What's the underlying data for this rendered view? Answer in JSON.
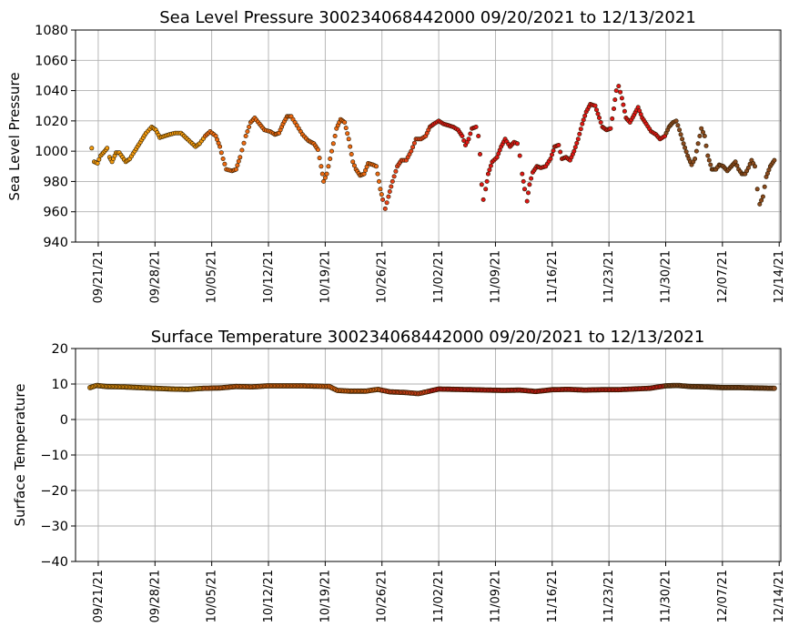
{
  "chart_data": [
    {
      "type": "scatter",
      "title": "Sea Level Pressure 300234068442000  09/20/2021 to 12/13/2021",
      "xlabel": "",
      "ylabel": "Sea Level Pressure",
      "x_range_days": [
        -1.8,
        85.2
      ],
      "ylim": [
        940,
        1080
      ],
      "yticks": [
        940,
        960,
        980,
        1000,
        1020,
        1040,
        1060,
        1080
      ],
      "xtick_days": [
        1,
        8,
        15,
        22,
        29,
        36,
        43,
        50,
        57,
        64,
        71,
        78,
        85
      ],
      "xtick_labels": [
        "09/21/21",
        "09/28/21",
        "10/05/21",
        "10/12/21",
        "10/19/21",
        "10/26/21",
        "11/02/21",
        "11/09/21",
        "11/16/21",
        "11/23/21",
        "11/30/21",
        "12/07/21",
        "12/14/21"
      ],
      "grid": true,
      "x_unit": "days since 09/20/2021",
      "key_points": [
        [
          0.2,
          1002
        ],
        [
          0.5,
          993
        ],
        [
          0.9,
          992
        ],
        [
          1.3,
          997
        ],
        [
          1.8,
          1000
        ],
        [
          2.1,
          1002
        ],
        [
          2.4,
          996
        ],
        [
          2.7,
          993
        ],
        [
          3.2,
          999
        ],
        [
          3.6,
          999
        ],
        [
          4.0,
          996
        ],
        [
          4.4,
          993
        ],
        [
          4.9,
          995
        ],
        [
          5.5,
          1000
        ],
        [
          6.2,
          1006
        ],
        [
          6.9,
          1012
        ],
        [
          7.6,
          1016
        ],
        [
          8.1,
          1014
        ],
        [
          8.6,
          1009
        ],
        [
          9.2,
          1010
        ],
        [
          9.8,
          1011
        ],
        [
          10.5,
          1012
        ],
        [
          11.2,
          1012
        ],
        [
          11.8,
          1009
        ],
        [
          12.4,
          1006
        ],
        [
          13.0,
          1003
        ],
        [
          13.5,
          1005
        ],
        [
          14.2,
          1010
        ],
        [
          14.8,
          1013
        ],
        [
          15.5,
          1010
        ],
        [
          16.0,
          1003
        ],
        [
          16.4,
          995
        ],
        [
          16.8,
          988
        ],
        [
          17.5,
          987
        ],
        [
          18.0,
          988
        ],
        [
          18.5,
          996
        ],
        [
          19.2,
          1010
        ],
        [
          19.8,
          1019
        ],
        [
          20.3,
          1022
        ],
        [
          20.9,
          1018
        ],
        [
          21.5,
          1014
        ],
        [
          22.2,
          1013
        ],
        [
          22.8,
          1011
        ],
        [
          23.3,
          1012
        ],
        [
          23.8,
          1018
        ],
        [
          24.3,
          1023
        ],
        [
          24.8,
          1023
        ],
        [
          25.5,
          1017
        ],
        [
          26.2,
          1011
        ],
        [
          26.9,
          1007
        ],
        [
          27.6,
          1005
        ],
        [
          28.1,
          1001
        ],
        [
          28.5,
          990
        ],
        [
          28.8,
          980
        ],
        [
          29.2,
          985
        ],
        [
          29.8,
          1000
        ],
        [
          30.4,
          1015
        ],
        [
          30.9,
          1021
        ],
        [
          31.4,
          1019
        ],
        [
          31.9,
          1008
        ],
        [
          32.4,
          993
        ],
        [
          32.8,
          988
        ],
        [
          33.3,
          984
        ],
        [
          33.8,
          985
        ],
        [
          34.3,
          992
        ],
        [
          34.9,
          991
        ],
        [
          35.3,
          990
        ],
        [
          35.8,
          975
        ],
        [
          36.1,
          968
        ],
        [
          36.4,
          962
        ],
        [
          36.8,
          970
        ],
        [
          37.3,
          980
        ],
        [
          37.9,
          990
        ],
        [
          38.4,
          994
        ],
        [
          39.0,
          994
        ],
        [
          39.6,
          1000
        ],
        [
          40.2,
          1008
        ],
        [
          40.8,
          1008
        ],
        [
          41.4,
          1010
        ],
        [
          41.9,
          1016
        ],
        [
          42.4,
          1018
        ],
        [
          43.0,
          1020
        ],
        [
          43.6,
          1018
        ],
        [
          44.2,
          1017
        ],
        [
          44.8,
          1016
        ],
        [
          45.4,
          1014
        ],
        [
          45.9,
          1010
        ],
        [
          46.3,
          1004
        ],
        [
          46.7,
          1008
        ],
        [
          47.1,
          1015
        ],
        [
          47.6,
          1016
        ],
        [
          47.9,
          1010
        ],
        [
          48.1,
          998
        ],
        [
          48.3,
          978
        ],
        [
          48.5,
          968
        ],
        [
          48.8,
          975
        ],
        [
          49.1,
          985
        ],
        [
          49.6,
          993
        ],
        [
          50.2,
          996
        ],
        [
          50.7,
          1003
        ],
        [
          51.2,
          1008
        ],
        [
          51.8,
          1003
        ],
        [
          52.3,
          1006
        ],
        [
          52.7,
          1005
        ],
        [
          53.0,
          997
        ],
        [
          53.3,
          985
        ],
        [
          53.6,
          975
        ],
        [
          53.9,
          967
        ],
        [
          54.2,
          978
        ],
        [
          54.6,
          986
        ],
        [
          55.1,
          990
        ],
        [
          55.6,
          989
        ],
        [
          56.2,
          990
        ],
        [
          56.8,
          995
        ],
        [
          57.3,
          1003
        ],
        [
          57.8,
          1004
        ],
        [
          58.2,
          995
        ],
        [
          58.7,
          996
        ],
        [
          59.2,
          994
        ],
        [
          59.7,
          1000
        ],
        [
          60.2,
          1008
        ],
        [
          60.7,
          1018
        ],
        [
          61.2,
          1026
        ],
        [
          61.7,
          1031
        ],
        [
          62.3,
          1030
        ],
        [
          62.8,
          1022
        ],
        [
          63.2,
          1016
        ],
        [
          63.7,
          1014
        ],
        [
          64.2,
          1015
        ],
        [
          64.6,
          1028
        ],
        [
          64.9,
          1040
        ],
        [
          65.2,
          1043
        ],
        [
          65.6,
          1035
        ],
        [
          66.1,
          1022
        ],
        [
          66.6,
          1019
        ],
        [
          67.1,
          1024
        ],
        [
          67.6,
          1029
        ],
        [
          68.1,
          1022
        ],
        [
          68.6,
          1018
        ],
        [
          69.2,
          1013
        ],
        [
          69.8,
          1011
        ],
        [
          70.3,
          1008
        ],
        [
          70.9,
          1010
        ],
        [
          71.4,
          1016
        ],
        [
          71.9,
          1019
        ],
        [
          72.3,
          1020
        ],
        [
          72.7,
          1014
        ],
        [
          73.2,
          1005
        ],
        [
          73.7,
          997
        ],
        [
          74.2,
          991
        ],
        [
          74.6,
          995
        ],
        [
          75.0,
          1005
        ],
        [
          75.4,
          1015
        ],
        [
          75.8,
          1010
        ],
        [
          76.2,
          997
        ],
        [
          76.7,
          988
        ],
        [
          77.2,
          988
        ],
        [
          77.6,
          991
        ],
        [
          78.1,
          990
        ],
        [
          78.6,
          987
        ],
        [
          79.1,
          990
        ],
        [
          79.6,
          993
        ],
        [
          80.0,
          988
        ],
        [
          80.4,
          985
        ],
        [
          80.8,
          985
        ],
        [
          81.2,
          989
        ],
        [
          81.6,
          994
        ],
        [
          82.0,
          990
        ],
        [
          82.3,
          975
        ],
        [
          82.6,
          965
        ],
        [
          83.0,
          970
        ],
        [
          83.4,
          983
        ],
        [
          83.9,
          990
        ],
        [
          84.4,
          994
        ]
      ]
    },
    {
      "type": "scatter",
      "title": "Surface Temperature 300234068442000  09/20/2021 to 12/13/2021",
      "xlabel": "",
      "ylabel": "Surface Temperature",
      "x_range_days": [
        -1.8,
        85.2
      ],
      "ylim": [
        -40,
        20
      ],
      "yticks": [
        -40,
        -30,
        -20,
        -10,
        0,
        10,
        20
      ],
      "ytick_labels": [
        "−40",
        "−30",
        "−20",
        "−10",
        "0",
        "10",
        "20"
      ],
      "xtick_days": [
        1,
        8,
        15,
        22,
        29,
        36,
        43,
        50,
        57,
        64,
        71,
        78,
        85
      ],
      "xtick_labels": [
        "09/21/21",
        "09/28/21",
        "10/05/21",
        "10/12/21",
        "10/19/21",
        "10/26/21",
        "11/02/21",
        "11/09/21",
        "11/16/21",
        "11/23/21",
        "11/30/21",
        "12/07/21",
        "12/14/21"
      ],
      "grid": true,
      "x_unit": "days since 09/20/2021",
      "key_points": [
        [
          0.0,
          9.0
        ],
        [
          0.8,
          9.6
        ],
        [
          2.0,
          9.3
        ],
        [
          4.0,
          9.2
        ],
        [
          6.0,
          9.0
        ],
        [
          8.0,
          8.8
        ],
        [
          10.0,
          8.6
        ],
        [
          12.0,
          8.5
        ],
        [
          14.0,
          8.8
        ],
        [
          16.0,
          8.9
        ],
        [
          18.0,
          9.3
        ],
        [
          20.0,
          9.2
        ],
        [
          22.0,
          9.5
        ],
        [
          24.0,
          9.5
        ],
        [
          26.0,
          9.5
        ],
        [
          28.0,
          9.4
        ],
        [
          29.5,
          9.3
        ],
        [
          30.5,
          8.2
        ],
        [
          32.0,
          8.0
        ],
        [
          34.0,
          8.0
        ],
        [
          35.5,
          8.5
        ],
        [
          37.0,
          7.8
        ],
        [
          39.0,
          7.6
        ],
        [
          40.5,
          7.3
        ],
        [
          41.5,
          7.8
        ],
        [
          43.0,
          8.6
        ],
        [
          45.0,
          8.5
        ],
        [
          47.0,
          8.4
        ],
        [
          49.0,
          8.3
        ],
        [
          51.0,
          8.2
        ],
        [
          53.0,
          8.3
        ],
        [
          55.0,
          7.9
        ],
        [
          57.0,
          8.4
        ],
        [
          59.0,
          8.5
        ],
        [
          61.0,
          8.3
        ],
        [
          63.0,
          8.4
        ],
        [
          65.0,
          8.4
        ],
        [
          67.0,
          8.6
        ],
        [
          69.0,
          8.8
        ],
        [
          71.0,
          9.5
        ],
        [
          72.5,
          9.6
        ],
        [
          74.0,
          9.3
        ],
        [
          76.0,
          9.2
        ],
        [
          78.0,
          9.0
        ],
        [
          80.0,
          9.0
        ],
        [
          82.0,
          8.9
        ],
        [
          84.4,
          8.8
        ]
      ]
    }
  ]
}
